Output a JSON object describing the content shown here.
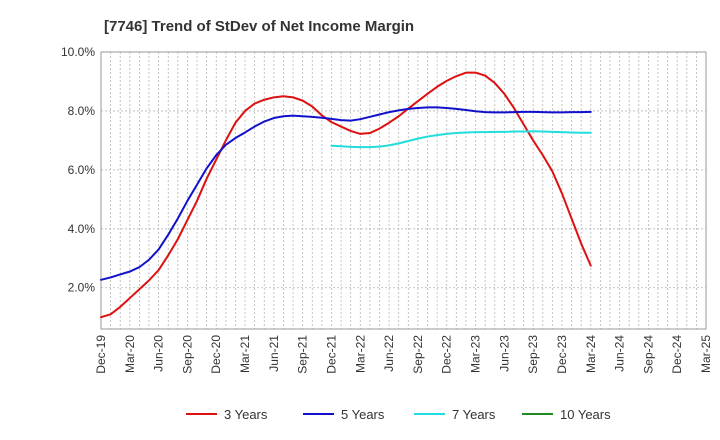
{
  "chart_data": {
    "type": "line",
    "title": "[7746]  Trend of StDev of Net Income Margin",
    "xlabel": "",
    "ylabel": "",
    "x": [
      "Dec-19",
      "Mar-20",
      "Jun-20",
      "Sep-20",
      "Dec-20",
      "Mar-21",
      "Jun-21",
      "Sep-21",
      "Dec-21",
      "Mar-22",
      "Jun-22",
      "Sep-22",
      "Dec-22",
      "Mar-23",
      "Jun-23",
      "Sep-23",
      "Dec-23",
      "Mar-24",
      "Jun-24",
      "Sep-24",
      "Dec-24",
      "Mar-25"
    ],
    "ylim": [
      0.6,
      10.0
    ],
    "yticks": [
      "2.0%",
      "4.0%",
      "6.0%",
      "8.0%",
      "10.0%"
    ],
    "ytick_values": [
      2.0,
      4.0,
      6.0,
      8.0,
      10.0
    ],
    "grid": true,
    "legend_position": "bottom",
    "series": [
      {
        "name": "3 Years",
        "color": "#dd1111",
        "points": [
          [
            "Dec-19",
            1.0
          ],
          [
            "Jan-20",
            1.1
          ],
          [
            "Feb-20",
            1.35
          ],
          [
            "Mar-20",
            1.65
          ],
          [
            "Apr-20",
            1.95
          ],
          [
            "May-20",
            2.25
          ],
          [
            "Jun-20",
            2.6
          ],
          [
            "Jul-20",
            3.1
          ],
          [
            "Aug-20",
            3.65
          ],
          [
            "Sep-20",
            4.3
          ],
          [
            "Oct-20",
            4.95
          ],
          [
            "Nov-20",
            5.7
          ],
          [
            "Dec-20",
            6.35
          ],
          [
            "Jan-21",
            7.0
          ],
          [
            "Feb-21",
            7.6
          ],
          [
            "Mar-21",
            8.0
          ],
          [
            "Apr-21",
            8.25
          ],
          [
            "May-21",
            8.38
          ],
          [
            "Jun-21",
            8.46
          ],
          [
            "Jul-21",
            8.5
          ],
          [
            "Aug-21",
            8.46
          ],
          [
            "Sep-21",
            8.35
          ],
          [
            "Oct-21",
            8.15
          ],
          [
            "Nov-21",
            7.85
          ],
          [
            "Dec-21",
            7.62
          ],
          [
            "Jan-22",
            7.47
          ],
          [
            "Feb-22",
            7.32
          ],
          [
            "Mar-22",
            7.22
          ],
          [
            "Apr-22",
            7.25
          ],
          [
            "May-22",
            7.4
          ],
          [
            "Jun-22",
            7.6
          ],
          [
            "Jul-22",
            7.82
          ],
          [
            "Aug-22",
            8.08
          ],
          [
            "Sep-22",
            8.33
          ],
          [
            "Oct-22",
            8.58
          ],
          [
            "Nov-22",
            8.82
          ],
          [
            "Dec-22",
            9.02
          ],
          [
            "Jan-23",
            9.18
          ],
          [
            "Feb-23",
            9.3
          ],
          [
            "Mar-23",
            9.3
          ],
          [
            "Apr-23",
            9.2
          ],
          [
            "May-23",
            8.95
          ],
          [
            "Jun-23",
            8.58
          ],
          [
            "Jul-23",
            8.1
          ],
          [
            "Aug-23",
            7.55
          ],
          [
            "Sep-23",
            7.0
          ],
          [
            "Oct-23",
            6.5
          ],
          [
            "Nov-23",
            5.95
          ],
          [
            "Dec-23",
            5.2
          ],
          [
            "Jan-24",
            4.35
          ],
          [
            "Feb-24",
            3.5
          ],
          [
            "Mar-24",
            2.75
          ]
        ]
      },
      {
        "name": "5 Years",
        "color": "#1111cc",
        "points": [
          [
            "Dec-19",
            2.27
          ],
          [
            "Jan-20",
            2.35
          ],
          [
            "Feb-20",
            2.45
          ],
          [
            "Mar-20",
            2.55
          ],
          [
            "Apr-20",
            2.7
          ],
          [
            "May-20",
            2.95
          ],
          [
            "Jun-20",
            3.3
          ],
          [
            "Jul-20",
            3.8
          ],
          [
            "Aug-20",
            4.35
          ],
          [
            "Sep-20",
            4.95
          ],
          [
            "Oct-20",
            5.5
          ],
          [
            "Nov-20",
            6.05
          ],
          [
            "Dec-20",
            6.5
          ],
          [
            "Jan-21",
            6.85
          ],
          [
            "Feb-21",
            7.08
          ],
          [
            "Mar-21",
            7.27
          ],
          [
            "Apr-21",
            7.47
          ],
          [
            "May-21",
            7.64
          ],
          [
            "Jun-21",
            7.76
          ],
          [
            "Jul-21",
            7.82
          ],
          [
            "Aug-21",
            7.84
          ],
          [
            "Sep-21",
            7.82
          ],
          [
            "Oct-21",
            7.8
          ],
          [
            "Nov-21",
            7.77
          ],
          [
            "Dec-21",
            7.73
          ],
          [
            "Jan-22",
            7.69
          ],
          [
            "Feb-22",
            7.67
          ],
          [
            "Mar-22",
            7.72
          ],
          [
            "Apr-22",
            7.8
          ],
          [
            "May-22",
            7.88
          ],
          [
            "Jun-22",
            7.96
          ],
          [
            "Jul-22",
            8.02
          ],
          [
            "Aug-22",
            8.07
          ],
          [
            "Sep-22",
            8.1
          ],
          [
            "Oct-22",
            8.12
          ],
          [
            "Nov-22",
            8.12
          ],
          [
            "Dec-22",
            8.1
          ],
          [
            "Jan-23",
            8.07
          ],
          [
            "Feb-23",
            8.03
          ],
          [
            "Mar-23",
            7.99
          ],
          [
            "Apr-23",
            7.96
          ],
          [
            "May-23",
            7.95
          ],
          [
            "Jun-23",
            7.95
          ],
          [
            "Jul-23",
            7.96
          ],
          [
            "Aug-23",
            7.97
          ],
          [
            "Sep-23",
            7.97
          ],
          [
            "Oct-23",
            7.96
          ],
          [
            "Nov-23",
            7.95
          ],
          [
            "Dec-23",
            7.95
          ],
          [
            "Jan-24",
            7.96
          ],
          [
            "Feb-24",
            7.96
          ],
          [
            "Mar-24",
            7.97
          ]
        ]
      },
      {
        "name": "7 Years",
        "color": "#22dddd",
        "points": [
          [
            "Dec-21",
            6.82
          ],
          [
            "Jan-22",
            6.8
          ],
          [
            "Feb-22",
            6.78
          ],
          [
            "Mar-22",
            6.77
          ],
          [
            "Apr-22",
            6.77
          ],
          [
            "May-22",
            6.79
          ],
          [
            "Jun-22",
            6.83
          ],
          [
            "Jul-22",
            6.9
          ],
          [
            "Aug-22",
            6.98
          ],
          [
            "Sep-22",
            7.06
          ],
          [
            "Oct-22",
            7.13
          ],
          [
            "Nov-22",
            7.18
          ],
          [
            "Dec-22",
            7.22
          ],
          [
            "Jan-23",
            7.25
          ],
          [
            "Feb-23",
            7.27
          ],
          [
            "Mar-23",
            7.28
          ],
          [
            "Apr-23",
            7.28
          ],
          [
            "May-23",
            7.29
          ],
          [
            "Jun-23",
            7.29
          ],
          [
            "Jul-23",
            7.3
          ],
          [
            "Aug-23",
            7.3
          ],
          [
            "Sep-23",
            7.31
          ],
          [
            "Oct-23",
            7.3
          ],
          [
            "Nov-23",
            7.29
          ],
          [
            "Dec-23",
            7.28
          ],
          [
            "Jan-24",
            7.27
          ],
          [
            "Feb-24",
            7.26
          ],
          [
            "Mar-24",
            7.26
          ]
        ]
      },
      {
        "name": "10 Years",
        "color": "#228822",
        "points": []
      }
    ]
  }
}
